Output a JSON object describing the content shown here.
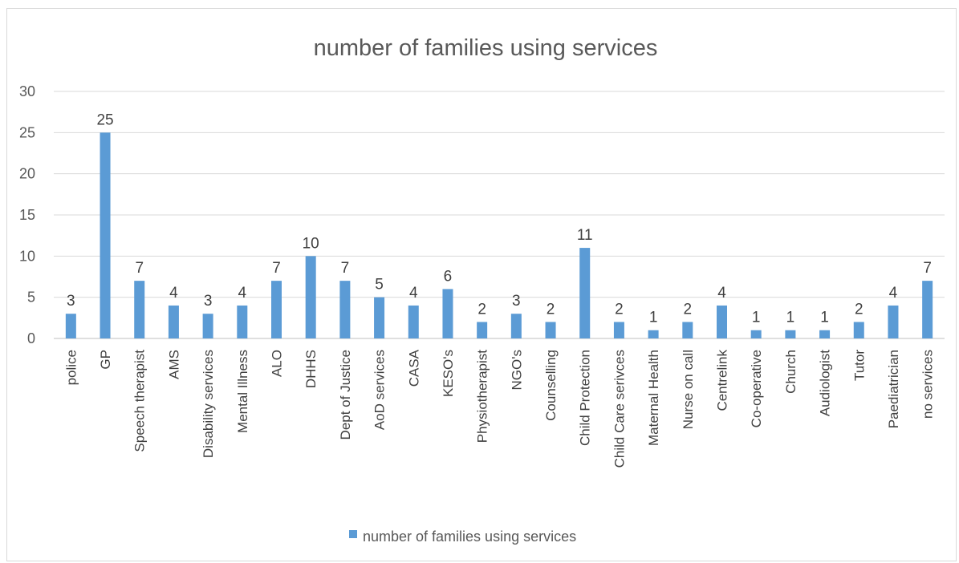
{
  "chart_data": {
    "type": "bar",
    "title": "number of families using services",
    "xlabel": "",
    "ylabel": "",
    "ylim": [
      0,
      30
    ],
    "yticks": [
      0,
      5,
      10,
      15,
      20,
      25,
      30
    ],
    "grid": true,
    "legend_position": "bottom",
    "categories": [
      "police",
      "GP",
      "Speech therapist",
      "AMS",
      "Disability services",
      "Mental Illness",
      "ALO",
      "DHHS",
      "Dept of Justice",
      "AoD services",
      "CASA",
      "KESO's",
      "Physiotherapist",
      "NGO's",
      "Counselling",
      "Child Protection",
      "Child Care serivces",
      "Maternal Health",
      "Nurse on call",
      "Centrelink",
      "Co-operative",
      "Church",
      "Audiologist",
      "Tutor",
      "Paediatrician",
      "no services"
    ],
    "series": [
      {
        "name": "number of families using services",
        "color": "#5b9bd5",
        "values": [
          3,
          25,
          7,
          4,
          3,
          4,
          7,
          10,
          7,
          5,
          4,
          6,
          2,
          3,
          2,
          11,
          2,
          1,
          2,
          4,
          1,
          1,
          1,
          2,
          4,
          7
        ]
      }
    ]
  }
}
